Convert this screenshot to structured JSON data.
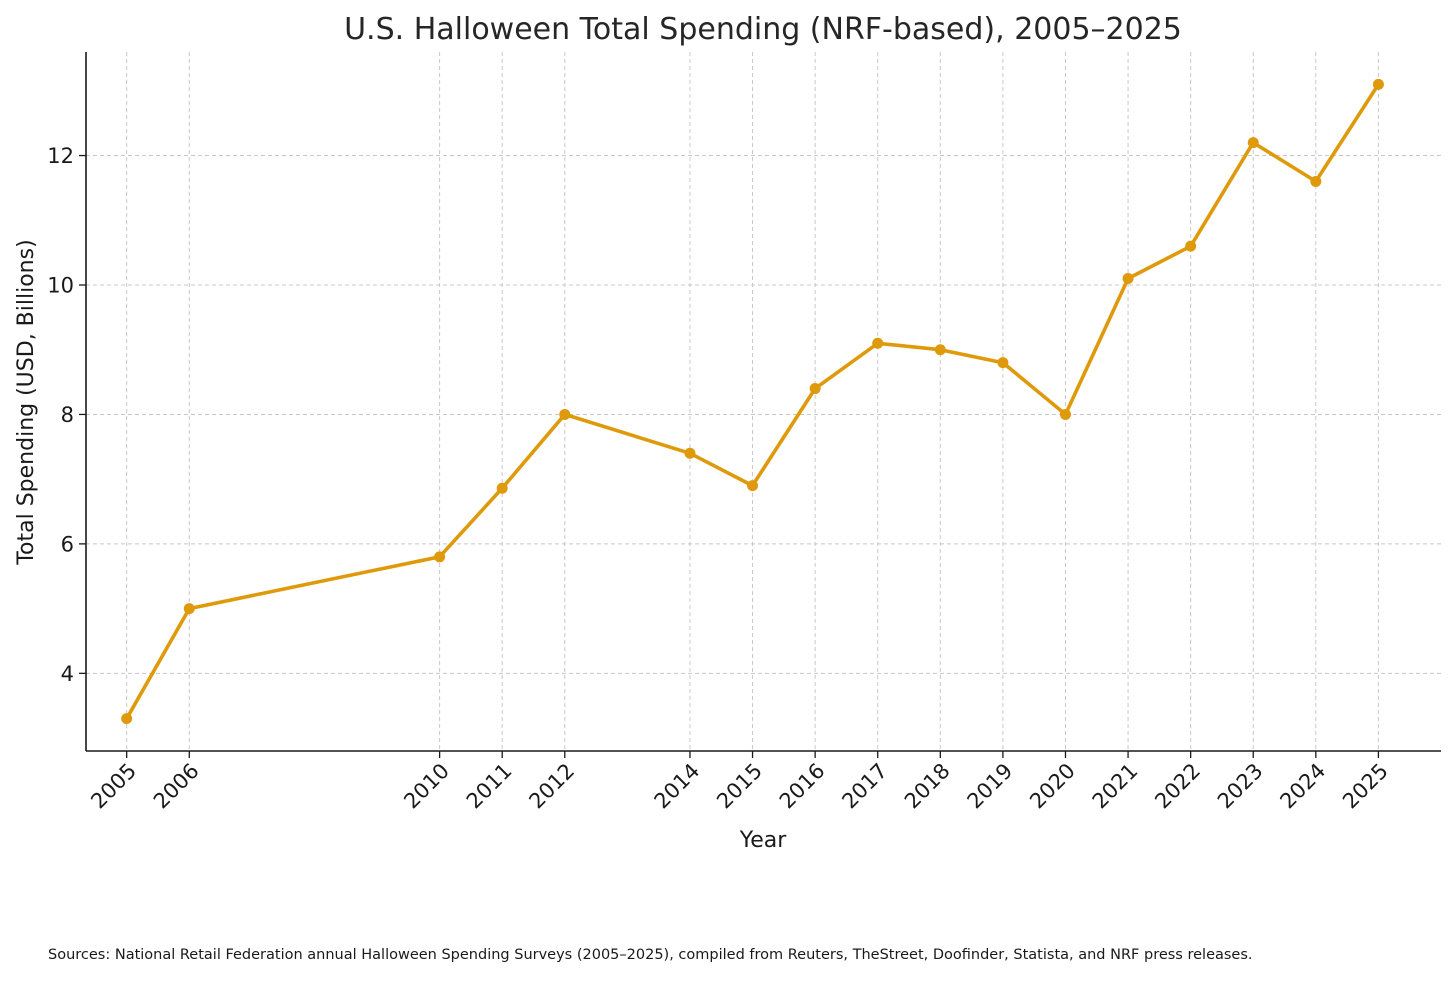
{
  "chart_data": {
    "type": "line",
    "title": "U.S. Halloween Total Spending (NRF-based), 2005–2025",
    "xlabel": "Year",
    "ylabel": "Total Spending (USD, Billions)",
    "x": [
      2005,
      2006,
      2010,
      2011,
      2012,
      2014,
      2015,
      2016,
      2017,
      2018,
      2019,
      2020,
      2021,
      2022,
      2023,
      2024,
      2025
    ],
    "values": [
      3.3,
      5.0,
      5.8,
      6.86,
      8.0,
      7.4,
      6.9,
      8.4,
      9.1,
      9.0,
      8.8,
      8.0,
      10.1,
      10.6,
      12.2,
      11.6,
      13.1
    ],
    "xticks": [
      "2005",
      "2006",
      "2010",
      "2011",
      "2012",
      "2014",
      "2015",
      "2016",
      "2017",
      "2018",
      "2019",
      "2020",
      "2021",
      "2022",
      "2023",
      "2024",
      "2025"
    ],
    "yticks": [
      4,
      6,
      8,
      10,
      12
    ],
    "ylim": [
      2.8,
      13.6
    ],
    "xlim": [
      2004.35,
      2026.0
    ],
    "grid": true,
    "color": "#DE9A0B"
  },
  "footer": {
    "sources": "Sources: National Retail Federation annual Halloween Spending Surveys (2005–2025), compiled from Reuters, TheStreet, Doofinder, Statista, and NRF press releases."
  }
}
